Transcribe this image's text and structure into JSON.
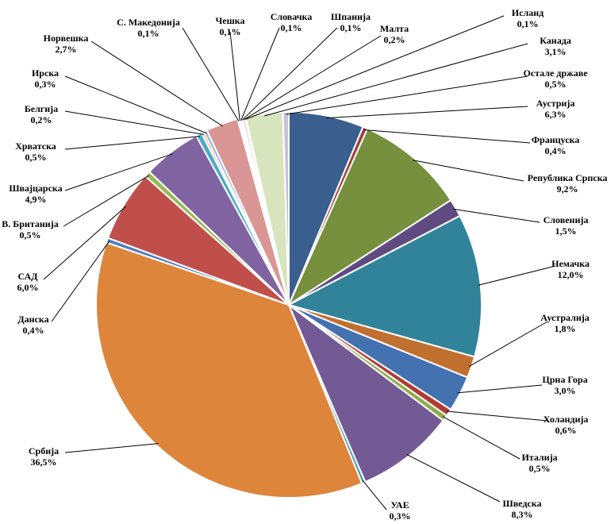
{
  "chart_data": {
    "type": "pie",
    "start_angle_deg": 0,
    "direction": "clockwise",
    "slices": [
      {
        "label": "Аустрија",
        "value": 6.3,
        "value_text": "6,3%",
        "color": "#3A5F8F"
      },
      {
        "label": "Француска",
        "value": 0.4,
        "value_text": "0,4%",
        "color": "#A0403C"
      },
      {
        "label": "Република Српска",
        "value": 9.2,
        "value_text": "9,2%",
        "color": "#76903E"
      },
      {
        "label": "Словенија",
        "value": 1.5,
        "value_text": "1,5%",
        "color": "#5F4A82"
      },
      {
        "label": "Немачка",
        "value": 12.0,
        "value_text": "12,0%",
        "color": "#31839A"
      },
      {
        "label": "Аустралија",
        "value": 1.8,
        "value_text": "1,8%",
        "color": "#C0702E"
      },
      {
        "label": "Црна Гора",
        "value": 3.0,
        "value_text": "3,0%",
        "color": "#4472B0"
      },
      {
        "label": "Холандија",
        "value": 0.6,
        "value_text": "0,6%",
        "color": "#B03A35"
      },
      {
        "label": "Италија",
        "value": 0.5,
        "value_text": "0,5%",
        "color": "#8FAD4C"
      },
      {
        "label": "Шведска",
        "value": 8.3,
        "value_text": "8,3%",
        "color": "#745A94"
      },
      {
        "label": "УАЕ",
        "value": 0.3,
        "value_text": "0,3%",
        "color": "#3E9CB8"
      },
      {
        "label": "Србија",
        "value": 36.5,
        "value_text": "36,5%",
        "color": "#DD853B"
      },
      {
        "label": "Данска",
        "value": 0.4,
        "value_text": "0,4%",
        "color": "#4F7EC0"
      },
      {
        "label": "САД",
        "value": 6.0,
        "value_text": "6,0%",
        "color": "#C04F4B"
      },
      {
        "label": "В. Британија",
        "value": 0.5,
        "value_text": "0,5%",
        "color": "#98B954"
      },
      {
        "label": "Швајцарска",
        "value": 4.9,
        "value_text": "4,9%",
        "color": "#8064A2"
      },
      {
        "label": "Хрватска",
        "value": 0.5,
        "value_text": "0,5%",
        "color": "#4BACC6"
      },
      {
        "label": "Белгија",
        "value": 0.2,
        "value_text": "0,2%",
        "color": "#F79646"
      },
      {
        "label": "Ирска",
        "value": 0.3,
        "value_text": "0,3%",
        "color": "#95B3D7"
      },
      {
        "label": "Норвешка",
        "value": 2.7,
        "value_text": "2,7%",
        "color": "#D99694"
      },
      {
        "label": "С. Македонија",
        "value": 0.1,
        "value_text": "0,1%",
        "color": "#C3D69B"
      },
      {
        "label": "Чешка",
        "value": 0.1,
        "value_text": "0,1%",
        "color": "#B2A2C7"
      },
      {
        "label": "Словачка",
        "value": 0.1,
        "value_text": "0,1%",
        "color": "#93CDDD"
      },
      {
        "label": "Шпанија",
        "value": 0.1,
        "value_text": "0,1%",
        "color": "#FAC090"
      },
      {
        "label": "Малта",
        "value": 0.2,
        "value_text": "0,2%",
        "color": "#E6B9B8"
      },
      {
        "label": "Исланд",
        "value": 0.1,
        "value_text": "0,1%",
        "color": "#7F7F7F"
      },
      {
        "label": "Канада",
        "value": 3.1,
        "value_text": "3,1%",
        "color": "#D7E4BD"
      },
      {
        "label": "Остале државе",
        "value": 0.5,
        "value_text": "0,5%",
        "color": "#CCC1DA"
      }
    ]
  }
}
